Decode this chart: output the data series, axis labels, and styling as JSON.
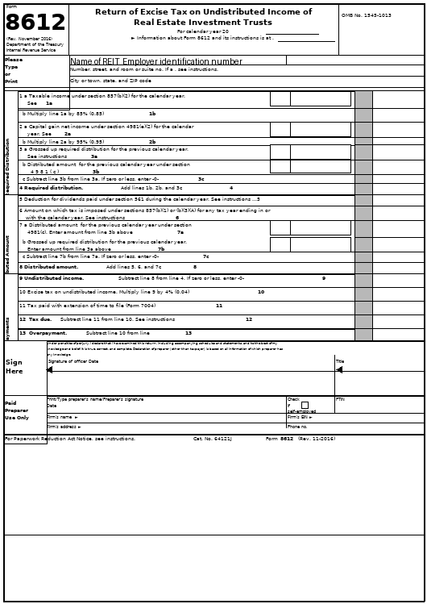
{
  "bg": "#ffffff",
  "gray": "#b8b8b8",
  "black": "#000000"
}
